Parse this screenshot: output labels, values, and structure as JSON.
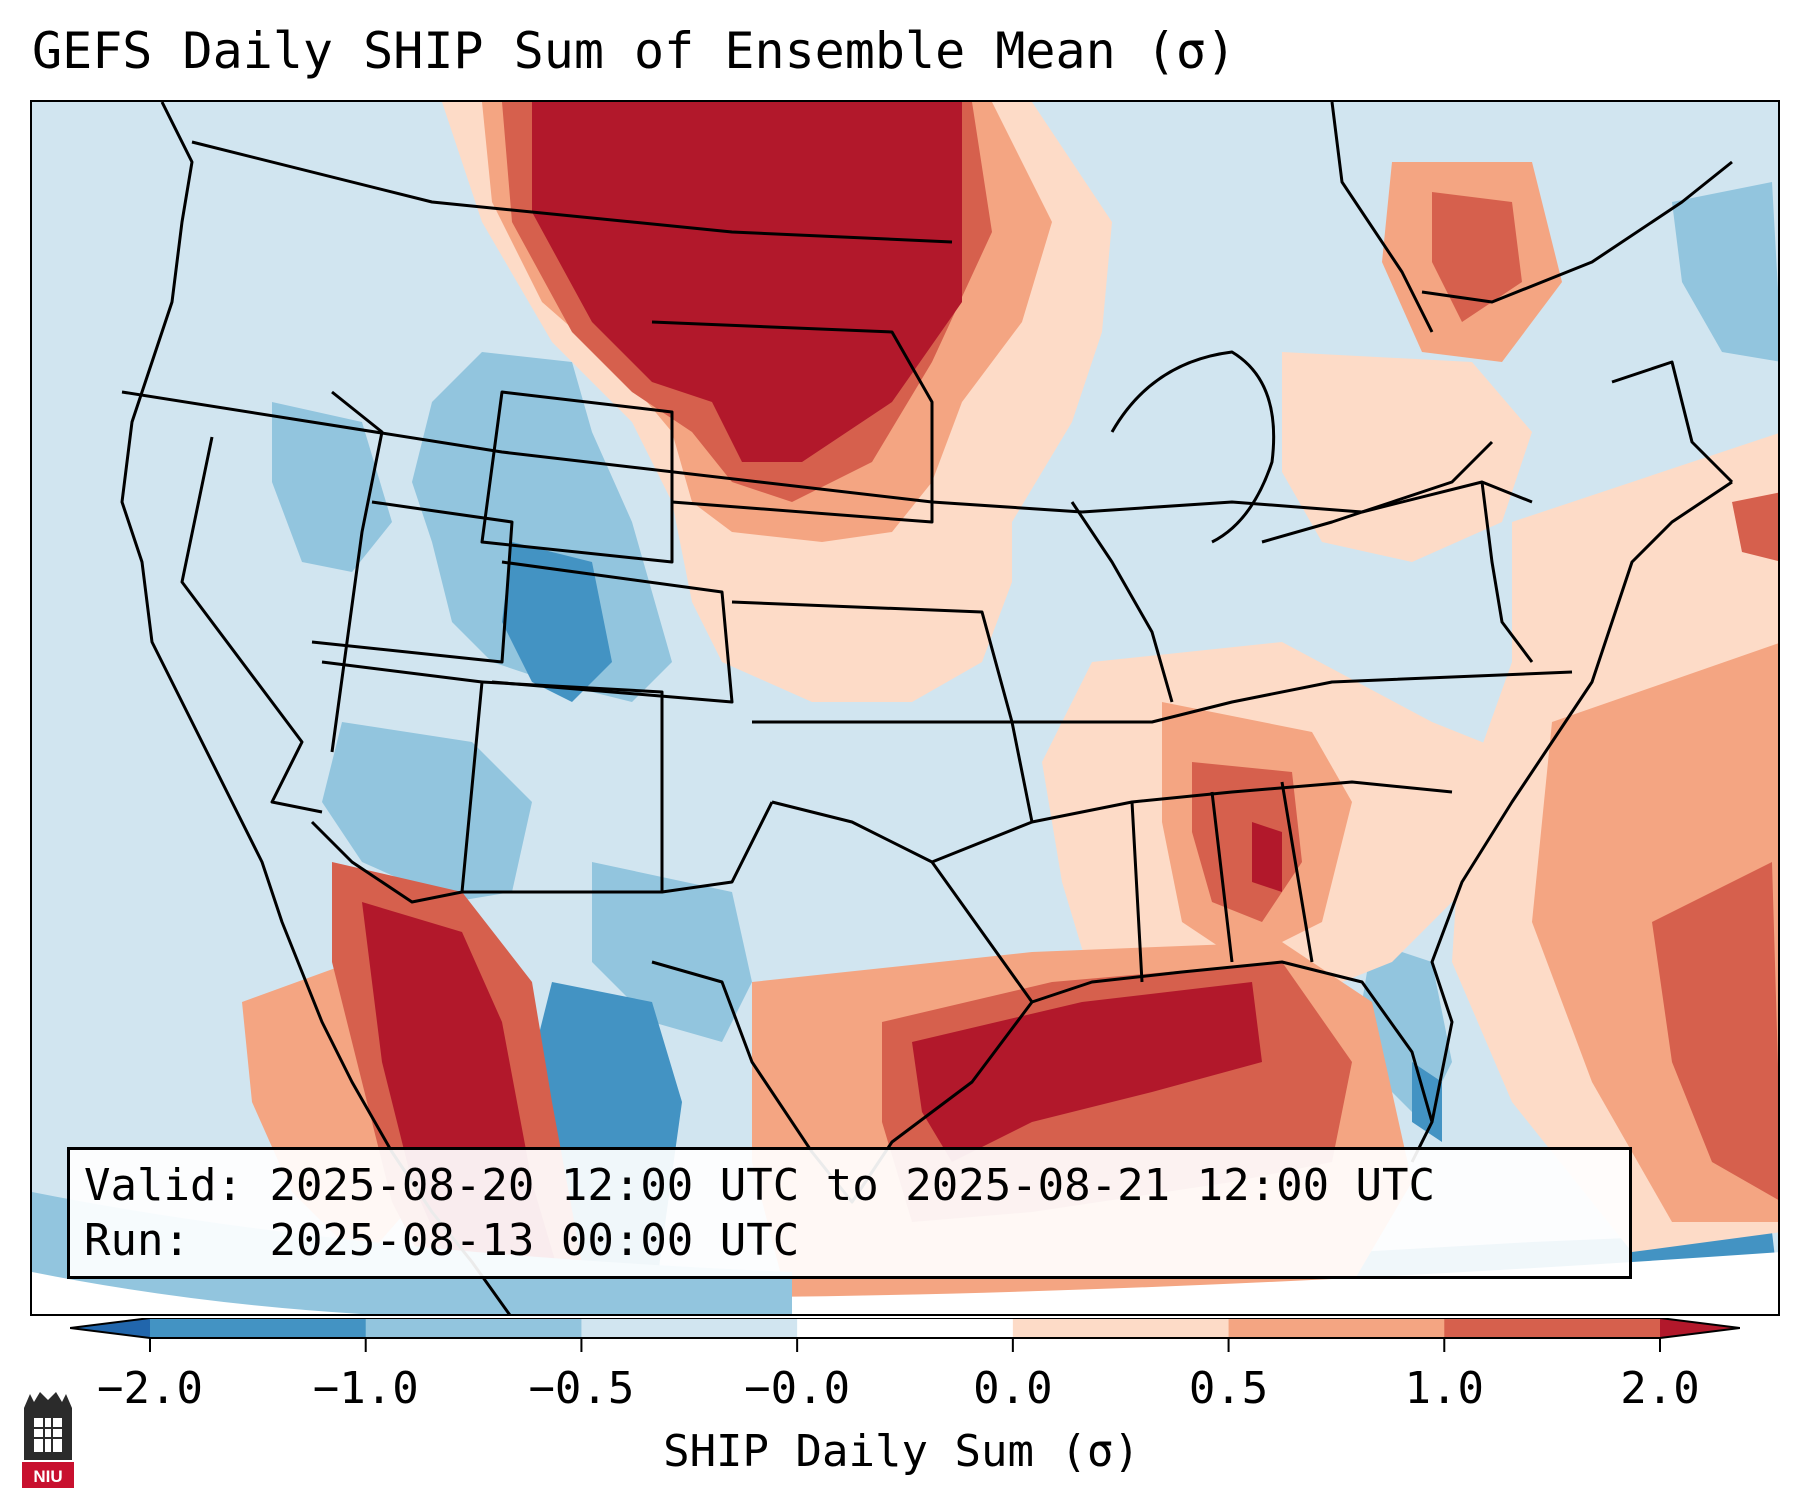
{
  "title": "GEFS Daily SHIP Sum of Ensemble Mean (σ)",
  "info": {
    "valid_label": "Valid:",
    "valid_value": "2025-08-20 12:00 UTC to 2025-08-21 12:00 UTC",
    "run_label": "Run:",
    "run_value": "2025-08-13 00:00 UTC"
  },
  "colorbar": {
    "label": "SHIP Daily Sum (σ)",
    "ticks": [
      "−2.0",
      "−1.0",
      "−0.5",
      "−0.0",
      "0.0",
      "0.5",
      "1.0",
      "2.0"
    ],
    "bins": [
      {
        "range": "-2.0 to -1.0",
        "color": "#4393c3"
      },
      {
        "range": "-1.0 to -0.5",
        "color": "#92c5de"
      },
      {
        "range": "-0.5 to -0.0",
        "color": "#d1e5f0"
      },
      {
        "range": "-0.0 to 0.0",
        "color": "#ffffff"
      },
      {
        "range": "0.0 to 0.5",
        "color": "#fddbc7"
      },
      {
        "range": "0.5 to 1.0",
        "color": "#f4a582"
      },
      {
        "range": "1.0 to 2.0",
        "color": "#d6604d"
      }
    ],
    "under_color": "#2166ac",
    "over_color": "#b2182b"
  },
  "logo": {
    "text": "NIU"
  }
}
